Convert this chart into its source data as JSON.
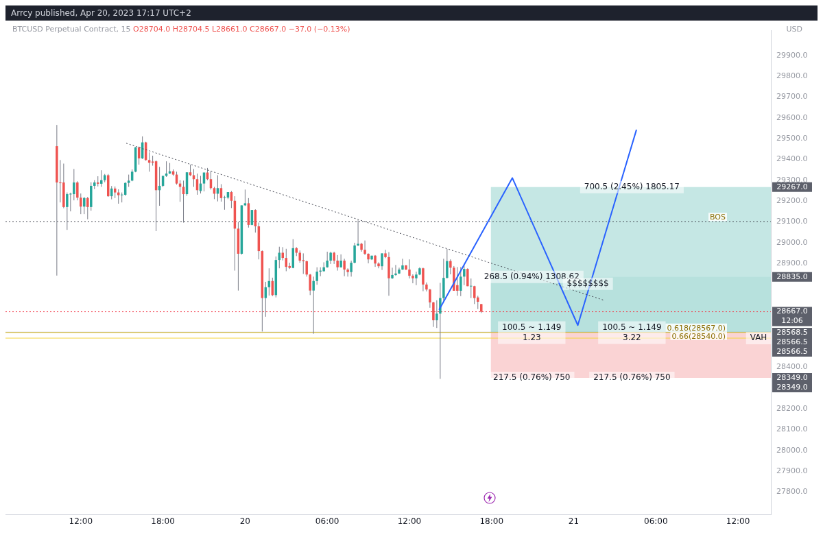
{
  "chart_data": {
    "type": "candlestick",
    "title": "BTCUSD Perpetual Contract, 15",
    "subtitle": "O28704.0 H28704.5 L28661.0 C28667.0 −37.0 (−0.13%)",
    "ylabel": "USD",
    "annotations": [
      "Arrcy published, Apr 20, 2023 17:17 UTC+2",
      {
        "text": "268.5 (0.94%) 1308.62",
        "x": "2023-04-20T20:56",
        "y": 28835
      },
      {
        "text": "100.5 ~ 1.149\n1.23",
        "x": "2023-04-20T20:56",
        "y": 28566.5
      },
      {
        "text": "217.5 (0.76%) 750",
        "x": "2023-04-20T20:56",
        "y": 28349
      },
      {
        "text": "700.5 (2.45%) 1805.17",
        "x": "2023-04-21T04:15",
        "y": 29267
      },
      {
        "text": "100.5 ~ 1.149\n3.22",
        "x": "2023-04-21T04:15",
        "y": 28566.5
      },
      {
        "text": "217.5 (0.76%) 750",
        "x": "2023-04-21T04:15",
        "y": 28349
      },
      {
        "text": "$$$$$$$$",
        "x": "2023-04-21T01:02",
        "y": 28802
      },
      {
        "text": "VAH",
        "x": "2023-04-21T13:30",
        "y": 28540
      },
      {
        "text": "29267.0",
        "x": "2023-04-21T14:24",
        "y": 29267
      },
      {
        "text": "28835.0",
        "x": "2023-04-21T14:24",
        "y": 28835
      },
      {
        "text": "28667.0\n12:06",
        "x": "2023-04-21T14:24",
        "y": 28667
      },
      {
        "text": "28568.5\n28566.5\n28566.5",
        "x": "2023-04-21T14:24",
        "y": 28566.5
      },
      {
        "text": "28349.0\n28349.0",
        "x": "2023-04-21T14:24",
        "y": 28349
      }
    ],
    "xlim": [
      "2023-04-19T06:30",
      "2023-04-21T14:24"
    ],
    "xticks": [
      {
        "value": "2023-04-19T12:00",
        "label": "12:00"
      },
      {
        "value": "2023-04-19T18:00",
        "label": "18:00"
      },
      {
        "value": "2023-04-20T00:00",
        "label": "20"
      },
      {
        "value": "2023-04-20T06:00",
        "label": "06:00"
      },
      {
        "value": "2023-04-20T12:00",
        "label": "12:00"
      },
      {
        "value": "2023-04-20T18:00",
        "label": "18:00"
      },
      {
        "value": "2023-04-21T00:00",
        "label": "21"
      },
      {
        "value": "2023-04-21T06:00",
        "label": "06:00"
      },
      {
        "value": "2023-04-21T12:00",
        "label": "12:00"
      }
    ],
    "ylim": [
      27690,
      30020
    ],
    "yticks": [
      {
        "value": 27800,
        "label": "27800.0"
      },
      {
        "value": 27900,
        "label": "27900.0"
      },
      {
        "value": 28000,
        "label": "28000.0"
      },
      {
        "value": 28100,
        "label": "28100.0"
      },
      {
        "value": 28200,
        "label": "28200.0"
      },
      {
        "value": 28400,
        "label": "28400.0"
      },
      {
        "value": 28900,
        "label": "28900.0"
      },
      {
        "value": 29000,
        "label": "29000.0"
      },
      {
        "value": 29100,
        "label": "29100.0"
      },
      {
        "value": 29200,
        "label": "29200.0"
      },
      {
        "value": 29300,
        "label": "29300.0"
      },
      {
        "value": 29400,
        "label": "29400.0"
      },
      {
        "value": 29500,
        "label": "29500.0"
      },
      {
        "value": 29600,
        "label": "29600.0"
      },
      {
        "value": 29700,
        "label": "29700.0"
      },
      {
        "value": 29800,
        "label": "29800.0"
      },
      {
        "value": 29900,
        "label": "29900.0"
      }
    ],
    "x": [
      "2023-04-19T10:15",
      "2023-04-19T10:30",
      "2023-04-19T10:45",
      "2023-04-19T11:00",
      "2023-04-19T11:15",
      "2023-04-19T11:30",
      "2023-04-19T11:45",
      "2023-04-19T12:00",
      "2023-04-19T12:15",
      "2023-04-19T12:30",
      "2023-04-19T12:45",
      "2023-04-19T13:00",
      "2023-04-19T13:15",
      "2023-04-19T13:30",
      "2023-04-19T13:45",
      "2023-04-19T14:00",
      "2023-04-19T14:15",
      "2023-04-19T14:30",
      "2023-04-19T14:45",
      "2023-04-19T15:00",
      "2023-04-19T15:15",
      "2023-04-19T15:30",
      "2023-04-19T15:45",
      "2023-04-19T16:00",
      "2023-04-19T16:15",
      "2023-04-19T16:30",
      "2023-04-19T16:45",
      "2023-04-19T17:00",
      "2023-04-19T17:15",
      "2023-04-19T17:30",
      "2023-04-19T17:45",
      "2023-04-19T18:00",
      "2023-04-19T18:15",
      "2023-04-19T18:30",
      "2023-04-19T18:45",
      "2023-04-19T19:00",
      "2023-04-19T19:15",
      "2023-04-19T19:30",
      "2023-04-19T19:45",
      "2023-04-19T20:00",
      "2023-04-19T20:15",
      "2023-04-19T20:30",
      "2023-04-19T20:45",
      "2023-04-19T21:00",
      "2023-04-19T21:15",
      "2023-04-19T21:30",
      "2023-04-19T21:45",
      "2023-04-19T22:00",
      "2023-04-19T22:15",
      "2023-04-19T22:30",
      "2023-04-19T22:45",
      "2023-04-19T23:00",
      "2023-04-19T23:15",
      "2023-04-19T23:30",
      "2023-04-19T23:45",
      "2023-04-20T00:00",
      "2023-04-20T00:15",
      "2023-04-20T00:30",
      "2023-04-20T00:45",
      "2023-04-20T01:00",
      "2023-04-20T01:15",
      "2023-04-20T01:30",
      "2023-04-20T01:45",
      "2023-04-20T02:00",
      "2023-04-20T02:15",
      "2023-04-20T02:30",
      "2023-04-20T02:45",
      "2023-04-20T03:00",
      "2023-04-20T03:15",
      "2023-04-20T03:30",
      "2023-04-20T03:45",
      "2023-04-20T04:00",
      "2023-04-20T04:15",
      "2023-04-20T04:30",
      "2023-04-20T04:45",
      "2023-04-20T05:00",
      "2023-04-20T05:15",
      "2023-04-20T05:30",
      "2023-04-20T05:45",
      "2023-04-20T06:00",
      "2023-04-20T06:15",
      "2023-04-20T06:30",
      "2023-04-20T06:45",
      "2023-04-20T07:00",
      "2023-04-20T07:15",
      "2023-04-20T07:30",
      "2023-04-20T07:45",
      "2023-04-20T08:00",
      "2023-04-20T08:15",
      "2023-04-20T08:30",
      "2023-04-20T08:45",
      "2023-04-20T09:00",
      "2023-04-20T09:15",
      "2023-04-20T09:30",
      "2023-04-20T09:45",
      "2023-04-20T10:00",
      "2023-04-20T10:15",
      "2023-04-20T10:30",
      "2023-04-20T10:45",
      "2023-04-20T11:00",
      "2023-04-20T11:15",
      "2023-04-20T11:30",
      "2023-04-20T11:45",
      "2023-04-20T12:00",
      "2023-04-20T12:15",
      "2023-04-20T12:30",
      "2023-04-20T12:45",
      "2023-04-20T13:00",
      "2023-04-20T13:15",
      "2023-04-20T13:30",
      "2023-04-20T13:45",
      "2023-04-20T14:00",
      "2023-04-20T14:15",
      "2023-04-20T14:30",
      "2023-04-20T14:45",
      "2023-04-20T15:00",
      "2023-04-20T15:15",
      "2023-04-20T15:30",
      "2023-04-20T15:45",
      "2023-04-20T16:00",
      "2023-04-20T16:15",
      "2023-04-20T16:30",
      "2023-04-20T16:45",
      "2023-04-20T17:00",
      "2023-04-20T17:15"
    ],
    "ohlc": [
      [
        29464,
        29566,
        28841,
        29289
      ],
      [
        29289,
        29397,
        29193,
        29287
      ],
      [
        29289,
        29380,
        29165,
        29171
      ],
      [
        29171,
        29241,
        29061,
        29233
      ],
      [
        29233,
        29240,
        29150,
        29235
      ],
      [
        29233,
        29354,
        29203,
        29289
      ],
      [
        29289,
        29295,
        29203,
        29216
      ],
      [
        29216,
        29236,
        29137,
        29173
      ],
      [
        29173,
        29220,
        29137,
        29214
      ],
      [
        29214,
        29220,
        29112,
        29171
      ],
      [
        29171,
        29290,
        29153,
        29273
      ],
      [
        29273,
        29300,
        29257,
        29289
      ],
      [
        29289,
        29319,
        29270,
        29283
      ],
      [
        29283,
        29348,
        29268,
        29300
      ],
      [
        29300,
        29330,
        29290,
        29324
      ],
      [
        29324,
        29330,
        29220,
        29223
      ],
      [
        29223,
        29272,
        29208,
        29260
      ],
      [
        29260,
        29270,
        29214,
        29241
      ],
      [
        29241,
        29256,
        29187,
        29228
      ],
      [
        29230,
        29241,
        29193,
        29231
      ],
      [
        29230,
        29290,
        29225,
        29287
      ],
      [
        29287,
        29327,
        29268,
        29298
      ],
      [
        29298,
        29352,
        29295,
        29341
      ],
      [
        29341,
        29460,
        29338,
        29458
      ],
      [
        29458,
        29462,
        29375,
        29405
      ],
      [
        29405,
        29511,
        29402,
        29482
      ],
      [
        29482,
        29485,
        29394,
        29397
      ],
      [
        29397,
        29434,
        29341,
        29384
      ],
      [
        29390,
        29418,
        29370,
        29384
      ],
      [
        29391,
        29395,
        29055,
        29252
      ],
      [
        29252,
        29364,
        29177,
        29273
      ],
      [
        29273,
        29321,
        29267,
        29321
      ],
      [
        29321,
        29391,
        29316,
        29332
      ],
      [
        29332,
        29383,
        29330,
        29343
      ],
      [
        29343,
        29352,
        29321,
        29327
      ],
      [
        29327,
        29341,
        29279,
        29284
      ],
      [
        29284,
        29300,
        29196,
        29268
      ],
      [
        29268,
        29298,
        29096,
        29233
      ],
      [
        29233,
        29338,
        29225,
        29338
      ],
      [
        29338,
        29375,
        29320,
        29324
      ],
      [
        29324,
        29354,
        29268,
        29305
      ],
      [
        29305,
        29332,
        29230,
        29252
      ],
      [
        29248,
        29321,
        29236,
        29284
      ],
      [
        29284,
        29337,
        29246,
        29337
      ],
      [
        29337,
        29359,
        29300,
        29305
      ],
      [
        29305,
        29343,
        29255,
        29262
      ],
      [
        29262,
        29268,
        29209,
        29235
      ],
      [
        29235,
        29324,
        29198,
        29262
      ],
      [
        29262,
        29281,
        29197,
        29214
      ],
      [
        29216,
        29225,
        29158,
        29218
      ],
      [
        29216,
        29243,
        29209,
        29243
      ],
      [
        29243,
        29248,
        29166,
        29201
      ],
      [
        29201,
        29223,
        28865,
        29067
      ],
      [
        29067,
        29098,
        28769,
        28946
      ],
      [
        28946,
        29179,
        28942,
        29179
      ],
      [
        29179,
        29255,
        29176,
        29189
      ],
      [
        29189,
        29214,
        29072,
        29085
      ],
      [
        29085,
        29157,
        29083,
        29157
      ],
      [
        29157,
        29160,
        29048,
        29078
      ],
      [
        29078,
        29096,
        28919,
        28959
      ],
      [
        28959,
        28962,
        28572,
        28733
      ],
      [
        28733,
        28811,
        28643,
        28785
      ],
      [
        28785,
        28876,
        28745,
        28815
      ],
      [
        28815,
        28831,
        28742,
        28747
      ],
      [
        28747,
        28933,
        28736,
        28916
      ],
      [
        28916,
        28980,
        28876,
        28951
      ],
      [
        28951,
        28978,
        28914,
        28926
      ],
      [
        28926,
        28970,
        28862,
        28883
      ],
      [
        28887,
        28903,
        28873,
        28878
      ],
      [
        28878,
        29016,
        28876,
        28973
      ],
      [
        28973,
        28978,
        28935,
        28951
      ],
      [
        28951,
        28962,
        28903,
        28913
      ],
      [
        28915,
        28948,
        28849,
        28910
      ],
      [
        28910,
        28913,
        28836,
        28846
      ],
      [
        28846,
        28849,
        28747,
        28769
      ],
      [
        28769,
        28836,
        28561,
        28815
      ],
      [
        28815,
        28881,
        28797,
        28860
      ],
      [
        28860,
        28881,
        28838,
        28865
      ],
      [
        28862,
        28905,
        28860,
        28881
      ],
      [
        28881,
        28956,
        28879,
        28913
      ],
      [
        28913,
        28956,
        28897,
        28951
      ],
      [
        28951,
        28956,
        28897,
        28913
      ],
      [
        28913,
        28940,
        28865,
        28881
      ],
      [
        28881,
        28943,
        28879,
        28913
      ],
      [
        28913,
        28922,
        28838,
        28870
      ],
      [
        28870,
        28876,
        28836,
        28858
      ],
      [
        28858,
        28913,
        28836,
        28903
      ],
      [
        28903,
        28999,
        28900,
        28986
      ],
      [
        28986,
        29107,
        28983,
        28994
      ],
      [
        28994,
        28999,
        28956,
        28965
      ],
      [
        28965,
        29010,
        28940,
        28946
      ],
      [
        28946,
        28948,
        28900,
        28919
      ],
      [
        28919,
        28937,
        28916,
        28937
      ],
      [
        28937,
        28940,
        28883,
        28899
      ],
      [
        28899,
        28905,
        28876,
        28886
      ],
      [
        28886,
        28948,
        28868,
        28948
      ],
      [
        28948,
        28965,
        28925,
        28930
      ],
      [
        28930,
        28954,
        28744,
        28828
      ],
      [
        28828,
        28879,
        28825,
        28844
      ],
      [
        28844,
        28892,
        28840,
        28851
      ],
      [
        28851,
        28879,
        28849,
        28870
      ],
      [
        28870,
        28922,
        28868,
        28890
      ],
      [
        28890,
        28892,
        28868,
        28870
      ],
      [
        28870,
        28919,
        28827,
        28840
      ],
      [
        28840,
        28847,
        28804,
        28828
      ],
      [
        28828,
        28860,
        28795,
        28846
      ],
      [
        28846,
        28881,
        28843,
        28876
      ],
      [
        28876,
        28879,
        28766,
        28798
      ],
      [
        28798,
        28808,
        28765,
        28774
      ],
      [
        28774,
        28777,
        28686,
        28712
      ],
      [
        28712,
        28715,
        28594,
        28626
      ],
      [
        28626,
        28722,
        28589,
        28658
      ],
      [
        28658,
        28806,
        28344,
        28733
      ],
      [
        28733,
        28922,
        28720,
        28830
      ],
      [
        28830,
        28969,
        28827,
        28911
      ],
      [
        28911,
        28919,
        28847,
        28879
      ],
      [
        28879,
        28887,
        28768,
        28768
      ],
      [
        28795,
        28882,
        28744,
        28768
      ],
      [
        28768,
        28882,
        28742,
        28836
      ],
      [
        28836,
        28890,
        28795,
        28873
      ],
      [
        28873,
        28876,
        28790,
        28790
      ],
      [
        28790,
        28827,
        28733,
        28792
      ],
      [
        28790,
        28792,
        28704,
        28733
      ],
      [
        28736,
        28744,
        28680,
        28715
      ],
      [
        28704,
        28704.5,
        28661,
        28667
      ]
    ],
    "series": [
      {
        "type": "line",
        "color": "#434651",
        "line_style": "dotted",
        "x": [
          "2023-04-19T15:19",
          "2023-04-21T02:16"
        ],
        "values": [
          29478,
          28721
        ]
      },
      {
        "type": "line",
        "color": "#2962ff",
        "line_style": "solid",
        "x": [
          "2023-04-20T14:10",
          "2023-04-20T19:31",
          "2023-04-21T00:18",
          "2023-04-21T04:35"
        ],
        "values": [
          28676,
          29311,
          28602,
          29543
        ]
      }
    ],
    "ref_lines": [
      {
        "axis": "y",
        "value": 28667,
        "color": "#f23645",
        "line_style": "dotted"
      },
      {
        "axis": "y",
        "value": 28568.5,
        "color": "#787b86",
        "line_style": "solid"
      },
      {
        "axis": "y",
        "value": 28567,
        "color": "#f5d63d",
        "line_style": "solid",
        "label": "0.618(28567.0)"
      },
      {
        "axis": "y",
        "value": 28540,
        "color": "#f5d63d",
        "line_style": "solid",
        "label": "0.66(28540.0)"
      },
      {
        "axis": "y",
        "value": 29100,
        "color": "#434651",
        "line_style": "dotted",
        "label": "BOS"
      }
    ],
    "bands": [
      {
        "axis": "y",
        "from": 28566.5,
        "to": 28835,
        "color": "#b2dfdb"
      },
      {
        "axis": "y",
        "from": 28566.5,
        "to": 29267,
        "color": "#b2dfdb"
      },
      {
        "axis": "y",
        "from": 28349,
        "to": 28566.5,
        "color": "#f8c4c6"
      }
    ],
    "marker": "none",
    "legend": false
  }
}
